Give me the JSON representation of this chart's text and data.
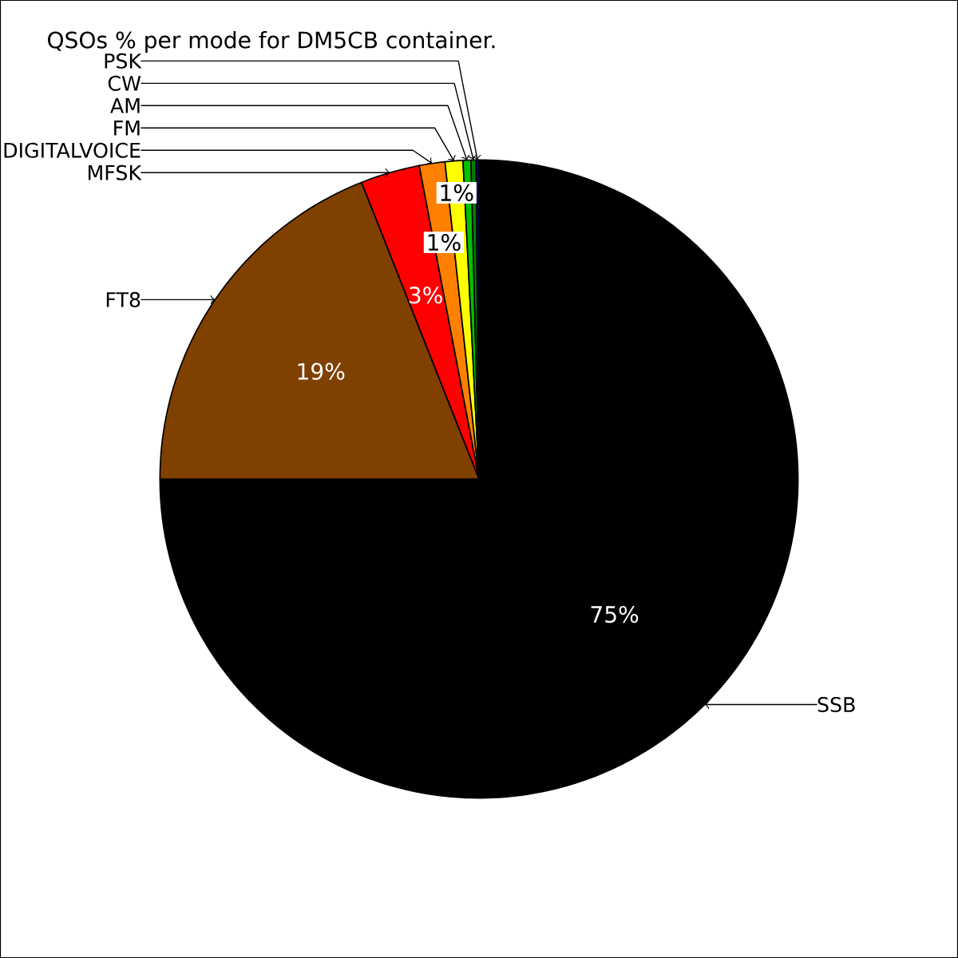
{
  "chart_data": {
    "type": "pie",
    "title": "QSOs % per mode for DM5CB container.",
    "categories": [
      "SSB",
      "FT8",
      "MFSK",
      "DIGITALVOICE",
      "FM",
      "AM",
      "CW",
      "PSK"
    ],
    "values": [
      75,
      19,
      3,
      1.3,
      0.9,
      0.4,
      0.25,
      0.15
    ],
    "colors": [
      "#000000",
      "#804000",
      "#ff0000",
      "#ff8000",
      "#ffff00",
      "#00c000",
      "#008000",
      "#000080"
    ],
    "value_labels": [
      "75%",
      "19%",
      "3%",
      "1%",
      "1%",
      null,
      null,
      null
    ]
  }
}
